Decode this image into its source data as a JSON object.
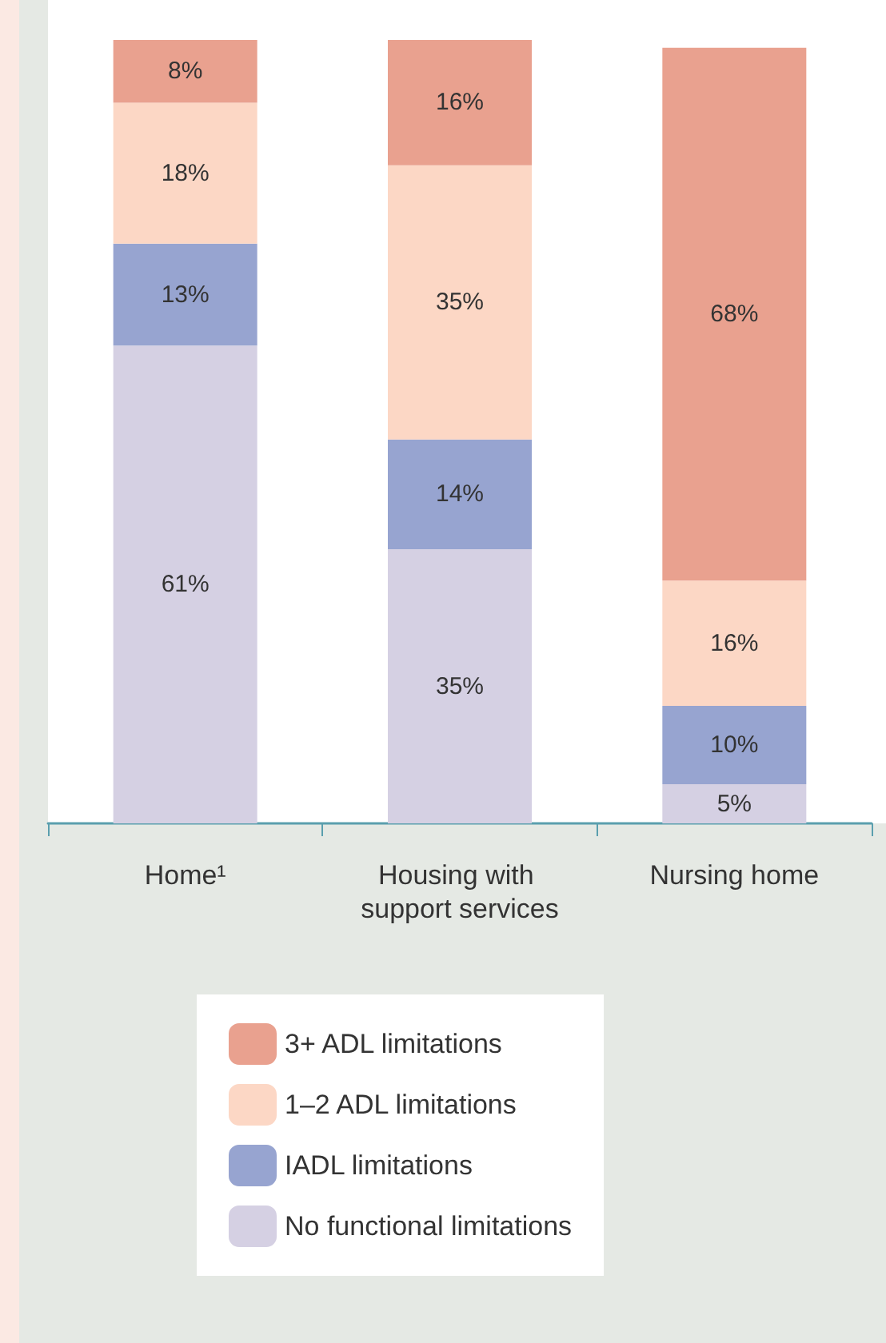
{
  "chart_data": {
    "type": "bar",
    "stacked": true,
    "legend": "bottom",
    "tick_labels": "x",
    "categories": [
      "Home¹",
      "Housing with support services",
      "Nursing home"
    ],
    "series": [
      {
        "name": "No functional limitations",
        "color": "#d5d0e3",
        "values": [
          61,
          35,
          5
        ],
        "value_labels": [
          "61%",
          "35%",
          "5%"
        ]
      },
      {
        "name": "IADL limitations",
        "color": "#97a4d0",
        "values": [
          13,
          14,
          10
        ],
        "value_labels": [
          "13%",
          "14%",
          "10%"
        ]
      },
      {
        "name": "1–2 ADL limitations",
        "color": "#fcd7c5",
        "values": [
          18,
          35,
          16
        ],
        "value_labels": [
          "18%",
          "35%",
          "16%"
        ]
      },
      {
        "name": "3+ ADL limitations",
        "color": "#e9a18f",
        "values": [
          8,
          16,
          68
        ],
        "value_labels": [
          "8%",
          "16%",
          "68%"
        ]
      }
    ]
  }
}
